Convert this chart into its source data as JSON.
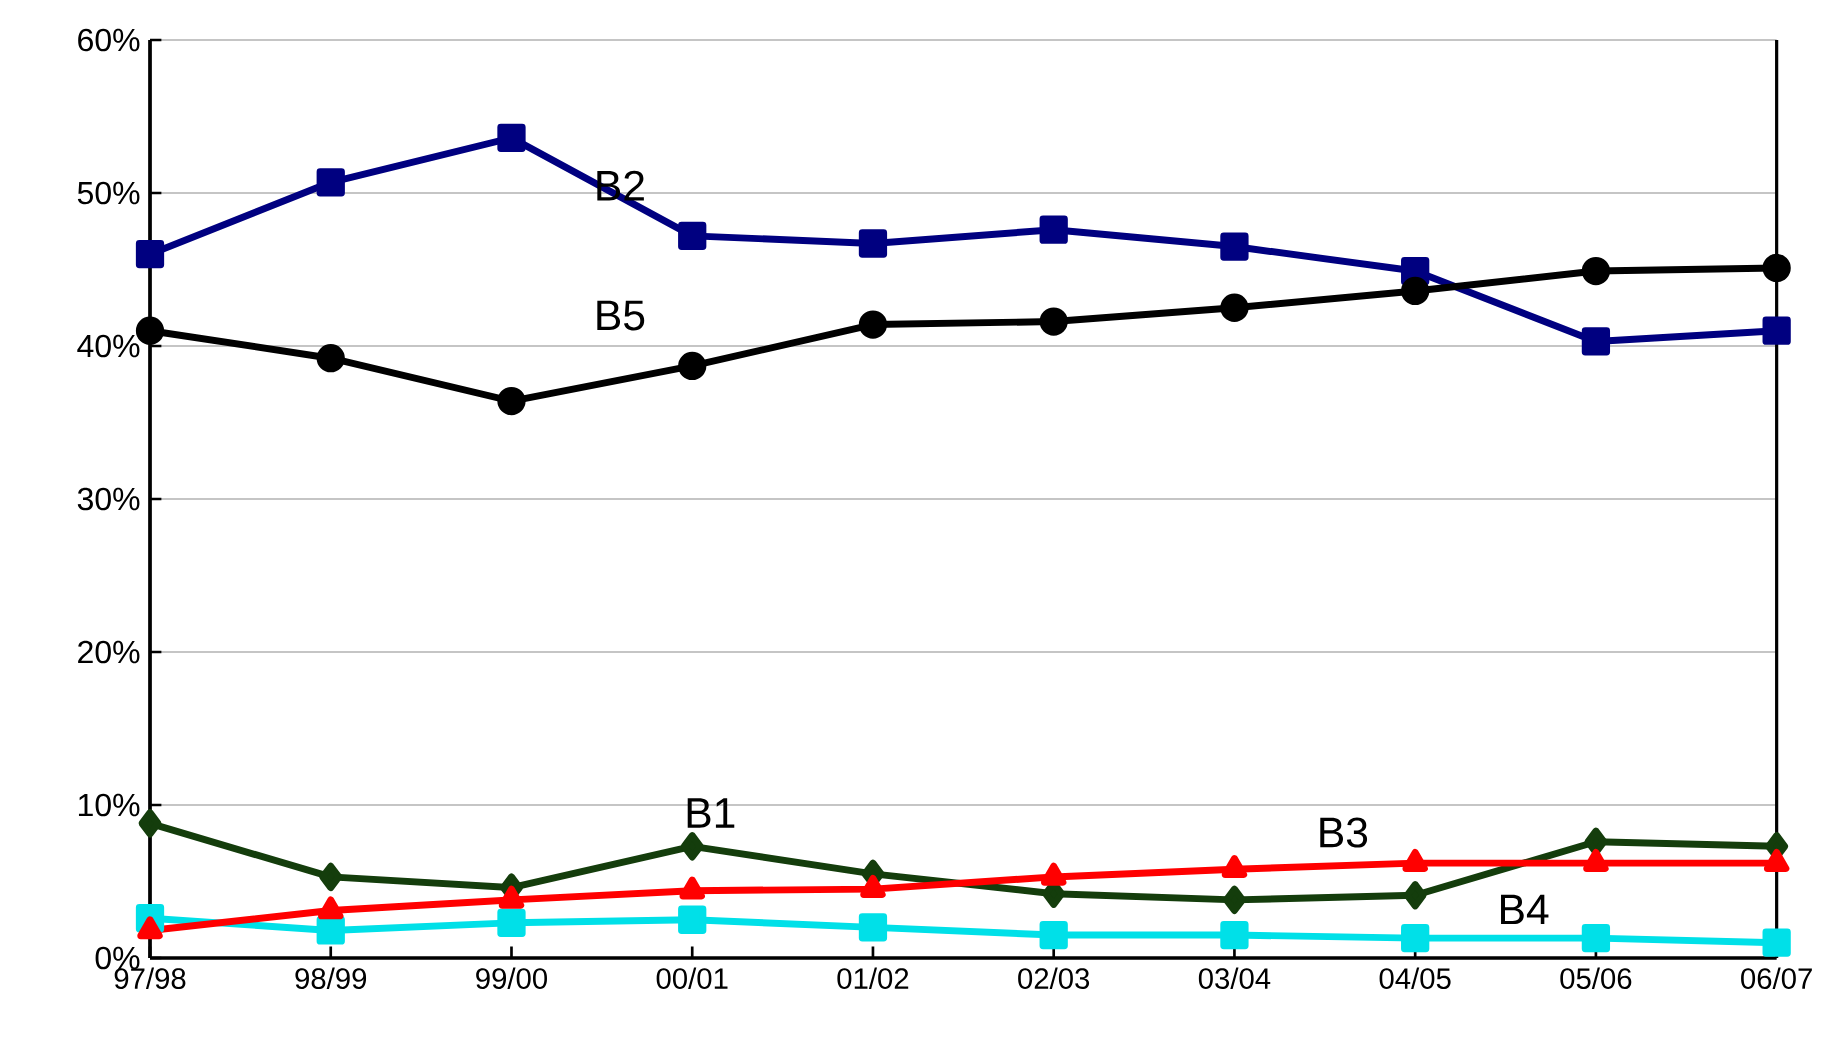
{
  "chart_data": {
    "type": "line",
    "categories": [
      "97/98",
      "98/99",
      "99/00",
      "00/01",
      "01/02",
      "02/03",
      "03/04",
      "04/05",
      "05/06",
      "06/07"
    ],
    "series": [
      {
        "name": "B2",
        "color": "#000080",
        "marker": "square",
        "values": [
          46.0,
          50.7,
          53.6,
          47.2,
          46.7,
          47.6,
          46.5,
          44.9,
          40.3,
          41.0
        ]
      },
      {
        "name": "B5",
        "color": "#000000",
        "marker": "circle",
        "values": [
          41.0,
          39.2,
          36.4,
          38.7,
          41.4,
          41.6,
          42.5,
          43.6,
          44.9,
          45.1
        ]
      },
      {
        "name": "B1",
        "color": "#143d0c",
        "marker": "diamond",
        "values": [
          8.8,
          5.3,
          4.6,
          7.3,
          5.5,
          4.2,
          3.8,
          4.1,
          7.6,
          7.3
        ]
      },
      {
        "name": "B4",
        "color": "#00e0e8",
        "marker": "square",
        "values": [
          2.6,
          1.8,
          2.3,
          2.5,
          2.0,
          1.5,
          1.5,
          1.3,
          1.3,
          1.0
        ]
      },
      {
        "name": "B3",
        "color": "#ff0000",
        "marker": "triangle",
        "values": [
          1.8,
          3.1,
          3.8,
          4.4,
          4.5,
          5.3,
          5.8,
          6.2,
          6.2,
          6.2
        ]
      }
    ],
    "ylim": [
      0,
      60
    ],
    "yticks": [
      {
        "value": 0,
        "label": "0%"
      },
      {
        "value": 10,
        "label": "10%"
      },
      {
        "value": 20,
        "label": "20%"
      },
      {
        "value": 30,
        "label": "30%"
      },
      {
        "value": 40,
        "label": "40%"
      },
      {
        "value": 50,
        "label": "50%"
      },
      {
        "value": 60,
        "label": "60%"
      }
    ],
    "grid": "y",
    "line_style": "solid"
  }
}
